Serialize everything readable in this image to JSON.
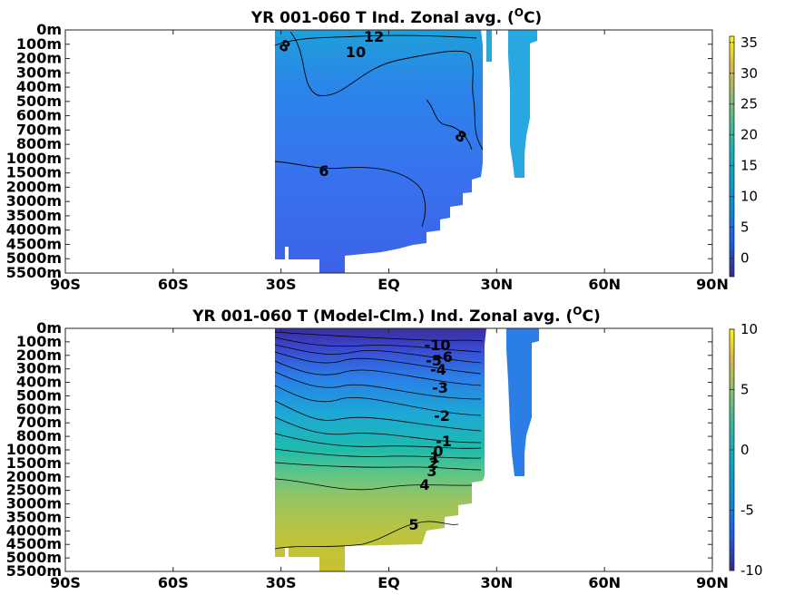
{
  "chart_data": [
    {
      "type": "heatmap",
      "title_main": "YR 001-060 T Ind. Zonal avg. (",
      "title_unit": "C)",
      "title_sup": "O",
      "x_ticks": [
        "90S",
        "60S",
        "30S",
        "EQ",
        "30N",
        "60N",
        "90N"
      ],
      "y_ticks": [
        "0m",
        "100m",
        "200m",
        "300m",
        "400m",
        "500m",
        "600m",
        "700m",
        "800m",
        "1000m",
        "1500m",
        "2000m",
        "3000m",
        "3500m",
        "4000m",
        "4500m",
        "5000m",
        "5500m"
      ],
      "colorbar_ticks": [
        "35",
        "30",
        "25",
        "20",
        "15",
        "10",
        "5",
        "0"
      ],
      "colorbar_range": [
        -3,
        36
      ],
      "contour_labels": [
        "12",
        "10",
        "8",
        "8",
        "6"
      ],
      "colors": {
        "bg": "#ffffff",
        "map": "parula"
      }
    },
    {
      "type": "heatmap",
      "title_main": "YR 001-060 T (Model-Clm.) Ind. Zonal avg. (",
      "title_unit": "C)",
      "title_sup": "O",
      "x_ticks": [
        "90S",
        "60S",
        "30S",
        "EQ",
        "30N",
        "60N",
        "90N"
      ],
      "y_ticks": [
        "0m",
        "100m",
        "200m",
        "300m",
        "400m",
        "500m",
        "600m",
        "700m",
        "800m",
        "1000m",
        "1500m",
        "2000m",
        "2500m",
        "3000m",
        "3500m",
        "4000m",
        "4500m",
        "5000m",
        "5500m"
      ],
      "colorbar_ticks": [
        "10",
        "5",
        "0",
        "-5",
        "-10"
      ],
      "colorbar_range": [
        -10,
        10
      ],
      "contour_labels": [
        "-10",
        "-5",
        "-6",
        "-4",
        "-3",
        "-2",
        "-1",
        "0",
        "1",
        "2",
        "3",
        "4",
        "5"
      ],
      "colors": {
        "bg": "#ffffff",
        "map": "parula"
      }
    }
  ]
}
